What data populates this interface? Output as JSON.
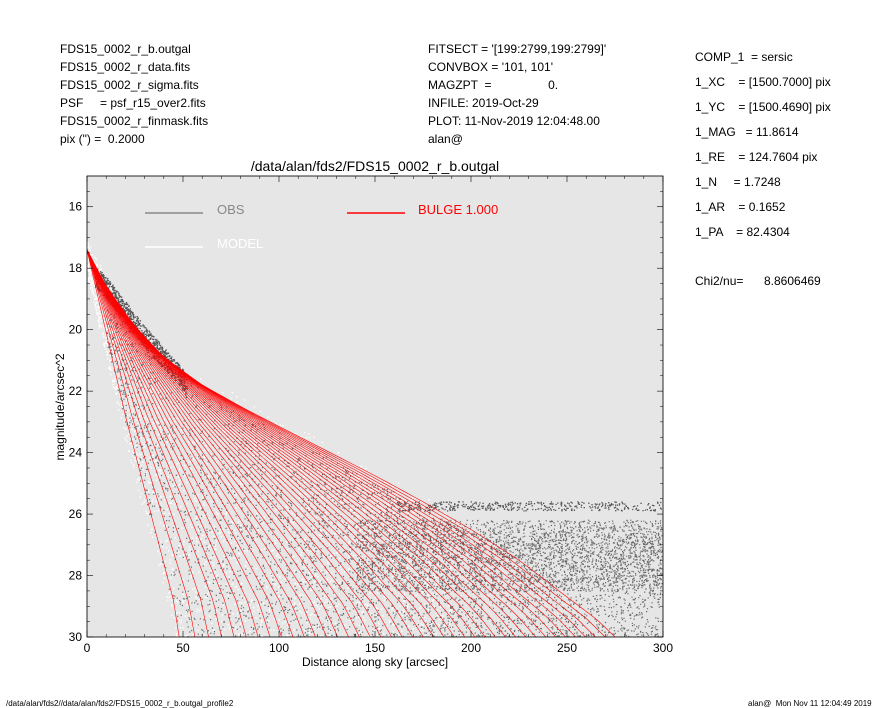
{
  "header_left": [
    "FDS15_0002_r_b.outgal",
    "FDS15_0002_r_data.fits",
    "FDS15_0002_r_sigma.fits",
    "PSF     = psf_r15_over2.fits",
    "FDS15_0002_r_finmask.fits",
    "pix (\") =  0.2000"
  ],
  "header_mid": [
    "FITSECT = '[199:2799,199:2799]'",
    "CONVBOX = '101, 101'",
    "MAGZPT  =                 0.",
    "INFILE: 2019-Oct-29",
    "PLOT: 11-Nov-2019 12:04:48.00",
    "alan@"
  ],
  "params": [
    "COMP_1  = sersic",
    "1_XC    = [1500.7000] pix",
    "1_YC    = [1500.4690] pix",
    "1_MAG   = 11.8614",
    "1_RE    = 124.7604 pix",
    "1_N     = 1.7248",
    "1_AR    = 0.1652",
    "1_PA    = 82.4304"
  ],
  "chi2": {
    "label": "Chi2/nu=",
    "value": "8.8606469"
  },
  "footer_left": "/data/alan/fds2//data/alan/fds2/FDS15_0002_r_b.outgal_profile2",
  "footer_right": "alan@  Mon Nov 11 12:04:49 2019",
  "colors": {
    "plot_bg": "#e6e6e6",
    "obs": "#555555",
    "model": "#ffffff",
    "bulge": "#ff0000",
    "legend_obs": "#888888"
  },
  "chart_data": {
    "type": "scatter",
    "title": "/data/alan/fds2/FDS15_0002_r_b.outgal",
    "xlabel": "Distance along sky [arcsec]",
    "ylabel": "magnitude/arcsec^2",
    "xlim": [
      0,
      300
    ],
    "ylim": [
      30,
      15
    ],
    "y_inverted": true,
    "xticks": [
      0,
      50,
      100,
      150,
      200,
      250,
      300
    ],
    "yticks": [
      16,
      18,
      20,
      22,
      24,
      26,
      28,
      30
    ],
    "grid": false,
    "legend": [
      {
        "name": "OBS",
        "color": "#888888"
      },
      {
        "name": "MODEL",
        "color": "#ffffff"
      },
      {
        "name": "BULGE  1.000",
        "color": "#ff0000"
      }
    ],
    "series": [
      {
        "name": "BULGE  1.000",
        "kind": "curves",
        "envelope_outer": [
          [
            0,
            17.4
          ],
          [
            10,
            18.6
          ],
          [
            25,
            19.9
          ],
          [
            40,
            20.9
          ],
          [
            60,
            21.8
          ],
          [
            80,
            22.5
          ],
          [
            100,
            23.15
          ],
          [
            125,
            23.95
          ],
          [
            150,
            24.75
          ],
          [
            175,
            25.6
          ],
          [
            200,
            26.5
          ],
          [
            225,
            27.5
          ],
          [
            250,
            28.7
          ],
          [
            265,
            29.4
          ],
          [
            275,
            30
          ]
        ],
        "envelope_inner": [
          [
            0,
            17.4
          ],
          [
            10,
            20.1
          ],
          [
            20,
            22.8
          ],
          [
            30,
            25.2
          ],
          [
            40,
            27.6
          ],
          [
            45,
            28.8
          ],
          [
            48,
            30
          ]
        ]
      },
      {
        "name": "OBS",
        "kind": "points",
        "bright_ridge": [
          [
            5,
            18.1
          ],
          [
            10,
            18.4
          ],
          [
            20,
            19.2
          ],
          [
            30,
            20.0
          ],
          [
            40,
            20.7
          ],
          [
            50,
            21.4
          ],
          [
            52,
            21.7
          ]
        ],
        "plateau_level": [
          26.2,
          28.5
        ],
        "plateau_x": [
          140,
          300
        ]
      },
      {
        "name": "MODEL",
        "kind": "points",
        "halo": [
          [
            15,
            18.9
          ],
          [
            40,
            21.5
          ],
          [
            80,
            23.9
          ],
          [
            120,
            25.1
          ],
          [
            150,
            25.7
          ],
          [
            175,
            26.0
          ]
        ]
      }
    ]
  }
}
